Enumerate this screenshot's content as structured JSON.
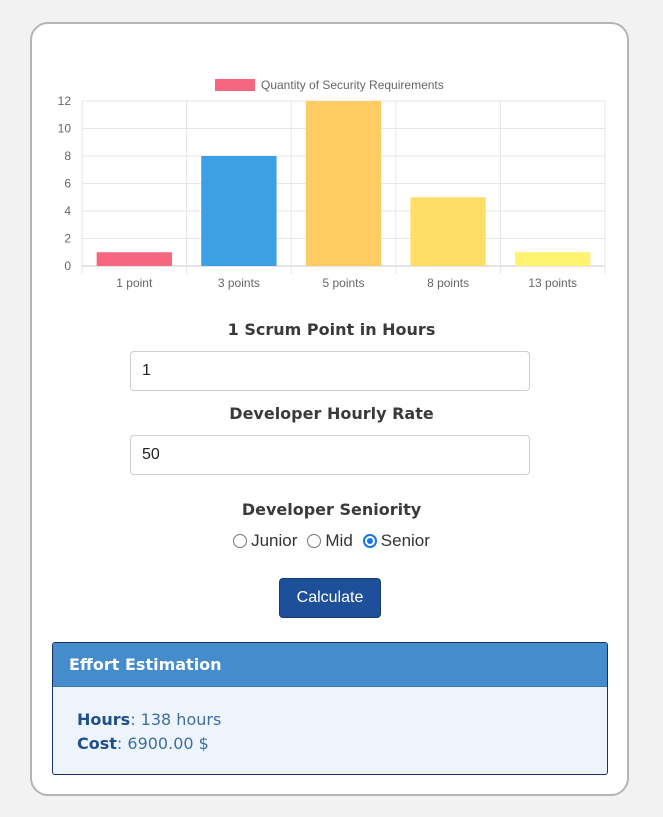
{
  "chart_data": {
    "type": "bar",
    "legend": "Quantity of Security Requirements",
    "categories": [
      "1 point",
      "3 points",
      "5 points",
      "8 points",
      "13 points"
    ],
    "values": [
      1,
      8,
      12,
      5,
      1
    ],
    "colors": [
      "#f6677f",
      "#3d9fe4",
      "#fecc62",
      "#ffde67",
      "#fff36f"
    ],
    "ylim": [
      0,
      12
    ],
    "yticks": [
      "0",
      "2",
      "4",
      "6",
      "8",
      "10",
      "12"
    ],
    "grid": true,
    "legend_position": "top"
  },
  "form": {
    "scrum_label": "1 Scrum Point in Hours",
    "scrum_value": "1",
    "rate_label": "Developer Hourly Rate",
    "rate_value": "50",
    "seniority_label": "Developer Seniority",
    "seniority_options": [
      "Junior",
      "Mid",
      "Senior"
    ],
    "seniority_selected": "Senior",
    "calculate_label": "Calculate"
  },
  "result": {
    "title": "Effort Estimation",
    "hours_label": "Hours",
    "hours_value": "138 hours",
    "cost_label": "Cost",
    "cost_value": "6900.00 $"
  }
}
